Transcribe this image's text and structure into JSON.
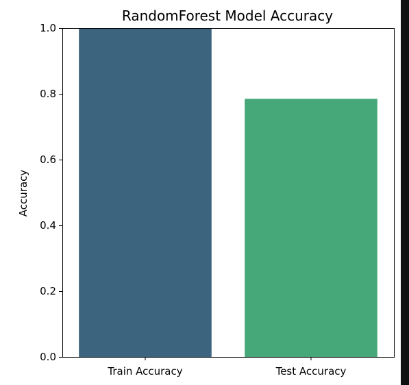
{
  "chart_data": {
    "type": "bar",
    "title": "RandomForest Model Accuracy",
    "xlabel": "",
    "ylabel": "Accuracy",
    "categories": [
      "Train Accuracy",
      "Test Accuracy"
    ],
    "values": [
      1.0,
      0.785
    ],
    "colors": [
      "#3d647f",
      "#46a879"
    ],
    "ylim": [
      0.0,
      1.0
    ],
    "yticks": [
      0.0,
      0.2,
      0.4,
      0.6,
      0.8,
      1.0
    ],
    "ytick_labels": [
      "0.0",
      "0.2",
      "0.4",
      "0.6",
      "0.8",
      "1.0"
    ],
    "grid": false,
    "legend": "none"
  }
}
